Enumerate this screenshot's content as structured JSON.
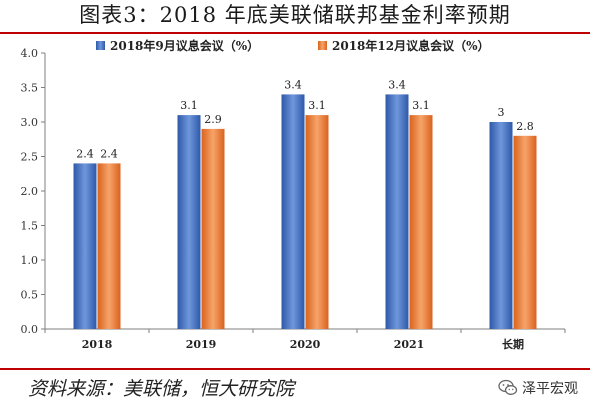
{
  "figure": {
    "title": "图表3：2018 年底美联储联邦基金利率预期",
    "source": "资料来源：美联储，恒大研究院",
    "watermark": "泽平宏观",
    "watermark_icon": "wechat-icon"
  },
  "chart_data": {
    "type": "bar",
    "title": "",
    "xlabel": "",
    "ylabel": "",
    "categories": [
      "2018",
      "2019",
      "2020",
      "2021",
      "长期"
    ],
    "series": [
      {
        "name": "2018年9月议息会议（%）",
        "values": [
          2.4,
          3.1,
          3.4,
          3.4,
          3.0
        ],
        "labels": [
          "2.4",
          "3.1",
          "3.4",
          "3.4",
          "3"
        ],
        "color": "#4472c4"
      },
      {
        "name": "2018年12月议息会议（%）",
        "values": [
          2.4,
          2.9,
          3.1,
          3.1,
          2.8
        ],
        "labels": [
          "2.4",
          "2.9",
          "3.1",
          "3.1",
          "2.8"
        ],
        "color": "#ed7d31"
      }
    ],
    "ylim": [
      0,
      4.0
    ],
    "yticks": [
      "0.0",
      "0.5",
      "1.0",
      "1.5",
      "2.0",
      "2.5",
      "3.0",
      "3.5",
      "4.0"
    ],
    "grid": false,
    "legend_position": "top"
  }
}
